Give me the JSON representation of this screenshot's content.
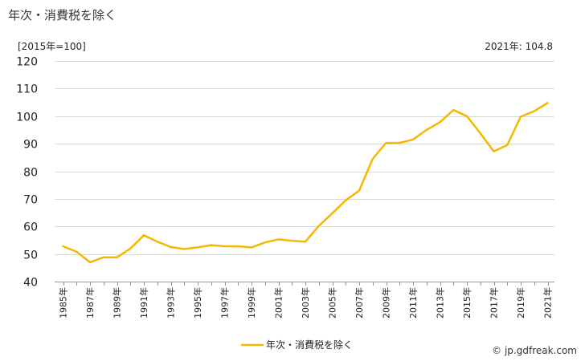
{
  "header": {
    "title": "年次・消費税を除く",
    "unit": "[2015年=100]",
    "latest": "2021年: 104.8"
  },
  "footer": {
    "credit": "© jp.gdfreak.com"
  },
  "colors": {
    "series": "#f5b800",
    "grid": "#d9d9d9",
    "axis": "#999999"
  },
  "chart_data": {
    "type": "line",
    "ylim": [
      40,
      120
    ],
    "yticks": [
      40,
      50,
      60,
      70,
      80,
      90,
      100,
      110,
      120
    ],
    "grid": true,
    "legend_position": "bottom",
    "x": [
      1985,
      1986,
      1987,
      1988,
      1989,
      1990,
      1991,
      1992,
      1993,
      1994,
      1995,
      1996,
      1997,
      1998,
      1999,
      2000,
      2001,
      2002,
      2003,
      2004,
      2005,
      2006,
      2007,
      2008,
      2009,
      2010,
      2011,
      2012,
      2013,
      2014,
      2015,
      2016,
      2017,
      2018,
      2019,
      2020,
      2021
    ],
    "xtick_labels": [
      "1985年",
      "1987年",
      "1989年",
      "1991年",
      "1993年",
      "1995年",
      "1997年",
      "1999年",
      "2001年",
      "2003年",
      "2005年",
      "2007年",
      "2009年",
      "2011年",
      "2013年",
      "2015年",
      "2017年",
      "2019年",
      "2021年"
    ],
    "series": [
      {
        "name": "年次・消費税を除く",
        "values": [
          52.8,
          50.8,
          47.0,
          48.8,
          48.8,
          52.0,
          56.8,
          54.5,
          52.5,
          51.8,
          52.4,
          53.2,
          52.8,
          52.8,
          52.4,
          54.2,
          55.3,
          54.8,
          54.5,
          60.2,
          64.8,
          69.5,
          73.0,
          84.5,
          90.3,
          90.3,
          91.5,
          95.0,
          97.8,
          102.2,
          100.0,
          93.8,
          87.2,
          89.5,
          99.8,
          101.8,
          104.8
        ]
      }
    ]
  }
}
